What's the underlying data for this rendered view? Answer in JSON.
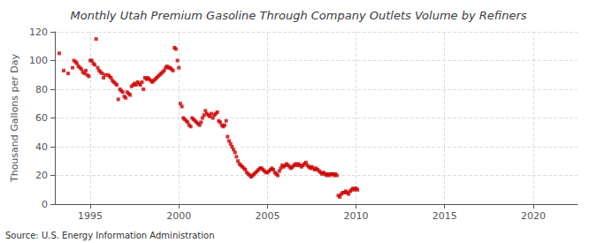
{
  "chart_data": {
    "type": "scatter",
    "title": "Monthly Utah Premium Gasoline Through Company Outlets Volume by Refiners",
    "ylabel": "Thousand Gallons per Day",
    "annotations": [
      "Source: U.S. Energy Information Administration"
    ],
    "color": "#cc0000",
    "marker": "square",
    "grid": true,
    "xlim": [
      1993.0,
      2022.5
    ],
    "ylim": [
      0,
      120
    ],
    "xticks": [
      1995,
      2000,
      2005,
      2010,
      2015,
      2020
    ],
    "yticks": [
      0,
      20,
      40,
      60,
      80,
      100,
      120
    ],
    "x": [
      1993.25,
      1993.5,
      1993.75,
      1994.0,
      1994.08,
      1994.17,
      1994.25,
      1994.33,
      1994.42,
      1994.5,
      1994.58,
      1994.67,
      1994.75,
      1994.83,
      1994.92,
      1995.0,
      1995.08,
      1995.17,
      1995.25,
      1995.33,
      1995.42,
      1995.5,
      1995.58,
      1995.67,
      1995.75,
      1995.83,
      1996.0,
      1996.08,
      1996.17,
      1996.25,
      1996.33,
      1996.42,
      1996.5,
      1996.58,
      1996.67,
      1996.75,
      1996.83,
      1996.92,
      1997.0,
      1997.08,
      1997.17,
      1997.25,
      1997.33,
      1997.42,
      1997.5,
      1997.58,
      1997.67,
      1997.75,
      1997.83,
      1997.92,
      1998.0,
      1998.08,
      1998.17,
      1998.25,
      1998.33,
      1998.42,
      1998.5,
      1998.58,
      1998.67,
      1998.75,
      1998.83,
      1998.92,
      1999.0,
      1999.08,
      1999.17,
      1999.25,
      1999.33,
      1999.42,
      1999.5,
      1999.58,
      1999.67,
      1999.75,
      1999.83,
      1999.92,
      2000.0,
      2000.08,
      2000.17,
      2000.25,
      2000.33,
      2000.42,
      2000.5,
      2000.58,
      2000.67,
      2000.75,
      2000.83,
      2000.92,
      2001.0,
      2001.08,
      2001.17,
      2001.25,
      2001.33,
      2001.42,
      2001.5,
      2001.58,
      2001.67,
      2001.75,
      2001.83,
      2001.92,
      2002.0,
      2002.08,
      2002.17,
      2002.25,
      2002.33,
      2002.42,
      2002.5,
      2002.58,
      2002.67,
      2002.75,
      2002.83,
      2002.92,
      2003.0,
      2003.08,
      2003.17,
      2003.25,
      2003.33,
      2003.42,
      2003.5,
      2003.58,
      2003.67,
      2003.75,
      2003.83,
      2003.92,
      2004.0,
      2004.08,
      2004.17,
      2004.25,
      2004.33,
      2004.42,
      2004.5,
      2004.58,
      2004.67,
      2004.75,
      2004.83,
      2004.92,
      2005.0,
      2005.08,
      2005.17,
      2005.25,
      2005.33,
      2005.42,
      2005.5,
      2005.58,
      2005.67,
      2005.75,
      2005.83,
      2005.92,
      2006.0,
      2006.08,
      2006.17,
      2006.25,
      2006.33,
      2006.42,
      2006.5,
      2006.58,
      2006.67,
      2006.75,
      2006.83,
      2006.92,
      2007.0,
      2007.08,
      2007.17,
      2007.25,
      2007.33,
      2007.42,
      2007.5,
      2007.58,
      2007.67,
      2007.75,
      2007.83,
      2007.92,
      2008.0,
      2008.08,
      2008.17,
      2008.25,
      2008.33,
      2008.42,
      2008.5,
      2008.58,
      2008.67,
      2008.75,
      2008.83,
      2008.92,
      2009.0,
      2009.08,
      2009.17,
      2009.25,
      2009.33,
      2009.42,
      2009.5,
      2009.58,
      2009.67,
      2009.75,
      2009.83,
      2009.92,
      2010.0,
      2010.08
    ],
    "values": [
      105,
      93,
      91,
      95,
      100,
      99,
      98,
      96,
      95,
      94,
      92,
      91,
      93,
      90,
      89,
      100,
      100,
      98,
      97,
      115,
      95,
      93,
      92,
      91,
      88,
      90,
      90,
      89,
      88,
      86,
      85,
      84,
      83,
      73,
      80,
      79,
      78,
      75,
      74,
      78,
      77,
      76,
      82,
      83,
      84,
      83,
      85,
      84,
      83,
      85,
      80,
      88,
      87,
      88,
      87,
      86,
      85,
      86,
      87,
      88,
      89,
      90,
      91,
      92,
      93,
      95,
      96,
      95,
      95,
      94,
      93,
      109,
      108,
      100,
      95,
      70,
      68,
      60,
      59,
      58,
      57,
      55,
      54,
      60,
      59,
      58,
      57,
      56,
      55,
      57,
      60,
      62,
      65,
      63,
      62,
      61,
      63,
      60,
      62,
      63,
      64,
      58,
      57,
      55,
      54,
      55,
      58,
      47,
      44,
      42,
      40,
      38,
      36,
      33,
      30,
      28,
      27,
      26,
      25,
      24,
      22,
      21,
      20,
      19,
      20,
      21,
      22,
      23,
      24,
      25,
      25,
      24,
      23,
      22,
      22,
      23,
      24,
      25,
      24,
      22,
      21,
      20,
      23,
      25,
      27,
      26,
      27,
      28,
      27,
      26,
      25,
      26,
      27,
      28,
      27,
      28,
      27,
      26,
      27,
      28,
      29,
      27,
      26,
      25,
      26,
      25,
      24,
      25,
      24,
      23,
      22,
      21,
      22,
      21,
      20,
      21,
      20,
      21,
      21,
      20,
      21,
      20,
      6,
      5,
      7,
      8,
      8,
      9,
      8,
      7,
      9,
      10,
      11,
      10,
      11,
      10
    ]
  }
}
